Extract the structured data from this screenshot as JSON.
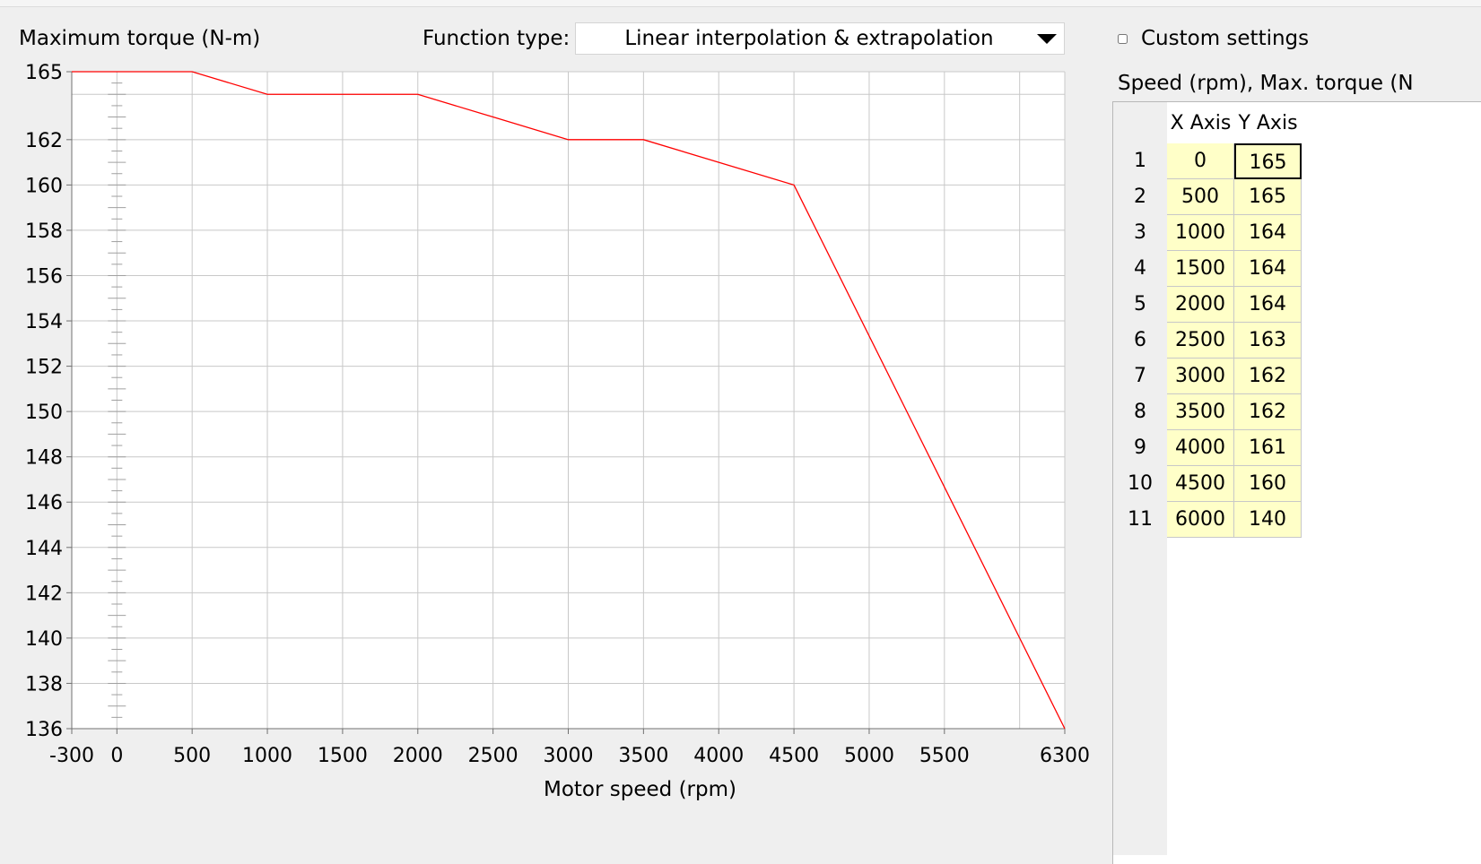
{
  "chart_data": {
    "type": "line",
    "ylabel": "Maximum torque (N-m)",
    "xlabel": "Motor speed (rpm)",
    "xlim": [
      -300,
      6300
    ],
    "ylim": [
      136,
      165
    ],
    "x_ticks": [
      "-300",
      "0",
      "500",
      "1000",
      "1500",
      "2000",
      "2500",
      "3000",
      "3500",
      "4000",
      "4500",
      "5000",
      "5500",
      "6300"
    ],
    "x_tick_values": [
      -300,
      0,
      500,
      1000,
      1500,
      2000,
      2500,
      3000,
      3500,
      4000,
      4500,
      5000,
      5500,
      6300
    ],
    "x_grid_extra": [
      6000
    ],
    "y_ticks": [
      "136",
      "138",
      "140",
      "142",
      "144",
      "146",
      "148",
      "150",
      "152",
      "154",
      "156",
      "158",
      "160",
      "162",
      "165"
    ],
    "y_tick_values": [
      136,
      138,
      140,
      142,
      144,
      146,
      148,
      150,
      152,
      154,
      156,
      158,
      160,
      162,
      165
    ],
    "y_grid_extra": [
      164
    ],
    "grid": true,
    "series": [
      {
        "color": "#ff0000",
        "x": [
          -300,
          500,
          1000,
          2000,
          2500,
          3000,
          3500,
          4000,
          4500,
          6000,
          6300
        ],
        "y": [
          165,
          165,
          164,
          164,
          163,
          162,
          162,
          161,
          160,
          140,
          136
        ]
      }
    ]
  },
  "function_type": {
    "label": "Function type:",
    "value": "Linear interpolation & extrapolation"
  },
  "custom": {
    "label": "Custom settings",
    "checked": false
  },
  "table": {
    "title": "Speed (rpm), Max. torque (N",
    "headers": {
      "x": "X Axis",
      "y": "Y Axis"
    },
    "rows": [
      {
        "n": "1",
        "x": "0",
        "y": "165"
      },
      {
        "n": "2",
        "x": "500",
        "y": "165"
      },
      {
        "n": "3",
        "x": "1000",
        "y": "164"
      },
      {
        "n": "4",
        "x": "1500",
        "y": "164"
      },
      {
        "n": "5",
        "x": "2000",
        "y": "164"
      },
      {
        "n": "6",
        "x": "2500",
        "y": "163"
      },
      {
        "n": "7",
        "x": "3000",
        "y": "162"
      },
      {
        "n": "8",
        "x": "3500",
        "y": "162"
      },
      {
        "n": "9",
        "x": "4000",
        "y": "161"
      },
      {
        "n": "10",
        "x": "4500",
        "y": "160"
      },
      {
        "n": "11",
        "x": "6000",
        "y": "140"
      }
    ]
  },
  "colors": {
    "line": "#ff0000",
    "cell_background": "#ffffc8",
    "grid": "#c8c8c8",
    "background": "#efefef"
  }
}
